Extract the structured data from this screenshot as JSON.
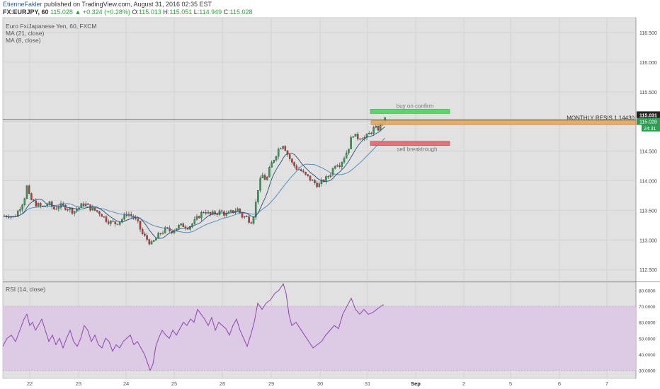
{
  "header": {
    "author": "EtienneFakler",
    "published_text": "published on TradingView.com, August 31, 2016 02:35 EST",
    "symbol": "FX:EURJPY, 60",
    "last": "115.028",
    "change_arrow": "▲",
    "change": "+0.324 (+0.28%)",
    "open_label": "O:",
    "open": "115.013",
    "high_label": "H:",
    "high": "115.051",
    "low_label": "L:",
    "low": "114.949",
    "close_label": "C:",
    "close": "115.028"
  },
  "main_pane": {
    "title": "Euro Fx/Japanese Yen, 60, FXCM",
    "indicators": [
      "MA (21, close)",
      "MA (8, close)"
    ]
  },
  "rsi_pane": {
    "title": "RSI (14, close)"
  },
  "annotations": {
    "buy_label": "buy on confirm",
    "sell_label": "sell breaktrough",
    "resistance_label": "MONTHLY RESIS 1.14430",
    "price_tag_top": "115.031",
    "price_tag_mid": "115.028",
    "countdown": "24:31"
  },
  "colors": {
    "up": "#2e9c52",
    "down": "#c23a3a",
    "ma21": "#4a86b0",
    "ma8": "#26507a",
    "rsi": "#8e44ad",
    "rsi_band": "#dcc7e6",
    "buy_box": "#5fd36c",
    "sell_box": "#e4707c",
    "resistance_box": "#e8a56a",
    "pane_bg": "#e1e1e1"
  },
  "chart_data": {
    "type": "candlestick",
    "x_ticks": [
      "22",
      "23",
      "24",
      "25",
      "26",
      "29",
      "30",
      "31",
      "Sep",
      "2",
      "5",
      "6",
      "7"
    ],
    "y_ticks": [
      "112.500",
      "113.000",
      "113.500",
      "114.000",
      "114.500",
      "115.000",
      "115.500",
      "116.000",
      "116.500"
    ],
    "ylim": [
      112.3,
      116.75
    ],
    "close_path": [
      [
        0,
        113.4
      ],
      [
        8,
        113.42
      ],
      [
        16,
        113.38
      ],
      [
        22,
        113.5
      ],
      [
        30,
        113.68
      ],
      [
        34,
        113.9
      ],
      [
        38,
        113.7
      ],
      [
        45,
        113.62
      ],
      [
        55,
        113.55
      ],
      [
        65,
        113.62
      ],
      [
        72,
        113.52
      ],
      [
        80,
        113.58
      ],
      [
        90,
        113.55
      ],
      [
        100,
        113.48
      ],
      [
        108,
        113.55
      ],
      [
        115,
        113.62
      ],
      [
        122,
        113.55
      ],
      [
        130,
        113.5
      ],
      [
        138,
        113.45
      ],
      [
        145,
        113.35
      ],
      [
        152,
        113.3
      ],
      [
        160,
        113.28
      ],
      [
        168,
        113.35
      ],
      [
        175,
        113.45
      ],
      [
        183,
        113.4
      ],
      [
        190,
        113.3
      ],
      [
        197,
        113.1
      ],
      [
        203,
        113.02
      ],
      [
        210,
        112.93
      ],
      [
        216,
        113.02
      ],
      [
        223,
        113.12
      ],
      [
        230,
        113.18
      ],
      [
        238,
        113.15
      ],
      [
        246,
        113.22
      ],
      [
        254,
        113.25
      ],
      [
        262,
        113.22
      ],
      [
        270,
        113.3
      ],
      [
        278,
        113.42
      ],
      [
        285,
        113.5
      ],
      [
        292,
        113.42
      ],
      [
        300,
        113.45
      ],
      [
        308,
        113.48
      ],
      [
        316,
        113.42
      ],
      [
        324,
        113.48
      ],
      [
        332,
        113.52
      ],
      [
        338,
        113.4
      ],
      [
        345,
        113.38
      ],
      [
        350,
        113.3
      ],
      [
        355,
        113.45
      ],
      [
        360,
        113.85
      ],
      [
        366,
        114.1
      ],
      [
        372,
        114.0
      ],
      [
        378,
        114.25
      ],
      [
        384,
        114.4
      ],
      [
        390,
        114.55
      ],
      [
        396,
        114.62
      ],
      [
        402,
        114.45
      ],
      [
        408,
        114.3
      ],
      [
        414,
        114.22
      ],
      [
        420,
        114.18
      ],
      [
        426,
        114.1
      ],
      [
        432,
        114.05
      ],
      [
        438,
        113.98
      ],
      [
        446,
        113.92
      ],
      [
        452,
        114.0
      ],
      [
        458,
        114.05
      ],
      [
        464,
        114.15
      ],
      [
        470,
        114.3
      ],
      [
        476,
        114.28
      ],
      [
        482,
        114.4
      ],
      [
        488,
        114.55
      ],
      [
        494,
        114.8
      ],
      [
        500,
        114.72
      ],
      [
        506,
        114.75
      ],
      [
        512,
        114.72
      ],
      [
        518,
        114.8
      ],
      [
        524,
        114.88
      ],
      [
        530,
        114.88
      ],
      [
        536,
        115.0
      ],
      [
        540,
        115.03
      ]
    ],
    "rsi": {
      "ylim": [
        25,
        85
      ],
      "y_ticks": [
        "30.0000",
        "40.0000",
        "50.0000",
        "60.0000",
        "70.0000",
        "80.0000"
      ],
      "band": [
        30,
        70
      ],
      "path": [
        [
          0,
          45
        ],
        [
          6,
          50
        ],
        [
          12,
          52
        ],
        [
          18,
          48
        ],
        [
          24,
          55
        ],
        [
          30,
          62
        ],
        [
          34,
          65
        ],
        [
          38,
          58
        ],
        [
          42,
          60
        ],
        [
          46,
          55
        ],
        [
          50,
          58
        ],
        [
          55,
          62
        ],
        [
          60,
          55
        ],
        [
          65,
          48
        ],
        [
          70,
          52
        ],
        [
          75,
          46
        ],
        [
          80,
          50
        ],
        [
          85,
          44
        ],
        [
          90,
          50
        ],
        [
          95,
          55
        ],
        [
          100,
          48
        ],
        [
          105,
          45
        ],
        [
          110,
          50
        ],
        [
          115,
          58
        ],
        [
          120,
          55
        ],
        [
          125,
          48
        ],
        [
          130,
          52
        ],
        [
          135,
          46
        ],
        [
          140,
          44
        ],
        [
          145,
          50
        ],
        [
          150,
          48
        ],
        [
          155,
          42
        ],
        [
          160,
          46
        ],
        [
          165,
          44
        ],
        [
          170,
          48
        ],
        [
          175,
          50
        ],
        [
          180,
          52
        ],
        [
          185,
          46
        ],
        [
          190,
          48
        ],
        [
          195,
          44
        ],
        [
          200,
          40
        ],
        [
          204,
          35
        ],
        [
          208,
          30
        ],
        [
          212,
          34
        ],
        [
          216,
          45
        ],
        [
          220,
          50
        ],
        [
          225,
          55
        ],
        [
          230,
          52
        ],
        [
          235,
          50
        ],
        [
          240,
          55
        ],
        [
          245,
          52
        ],
        [
          250,
          56
        ],
        [
          255,
          60
        ],
        [
          260,
          58
        ],
        [
          265,
          62
        ],
        [
          270,
          60
        ],
        [
          275,
          68
        ],
        [
          280,
          65
        ],
        [
          285,
          62
        ],
        [
          290,
          58
        ],
        [
          295,
          63
        ],
        [
          300,
          55
        ],
        [
          305,
          60
        ],
        [
          310,
          58
        ],
        [
          315,
          56
        ],
        [
          320,
          52
        ],
        [
          325,
          58
        ],
        [
          330,
          62
        ],
        [
          335,
          55
        ],
        [
          340,
          50
        ],
        [
          345,
          45
        ],
        [
          350,
          52
        ],
        [
          355,
          60
        ],
        [
          360,
          72
        ],
        [
          366,
          68
        ],
        [
          372,
          72
        ],
        [
          378,
          74
        ],
        [
          384,
          78
        ],
        [
          390,
          80
        ],
        [
          396,
          84
        ],
        [
          400,
          78
        ],
        [
          404,
          65
        ],
        [
          408,
          58
        ],
        [
          414,
          60
        ],
        [
          420,
          56
        ],
        [
          426,
          52
        ],
        [
          432,
          48
        ],
        [
          438,
          44
        ],
        [
          444,
          46
        ],
        [
          450,
          48
        ],
        [
          456,
          52
        ],
        [
          462,
          55
        ],
        [
          468,
          58
        ],
        [
          474,
          56
        ],
        [
          480,
          65
        ],
        [
          486,
          70
        ],
        [
          492,
          75
        ],
        [
          498,
          68
        ],
        [
          504,
          65
        ],
        [
          510,
          68
        ],
        [
          516,
          65
        ],
        [
          522,
          66
        ],
        [
          528,
          68
        ],
        [
          534,
          70
        ],
        [
          538,
          71
        ]
      ]
    }
  }
}
